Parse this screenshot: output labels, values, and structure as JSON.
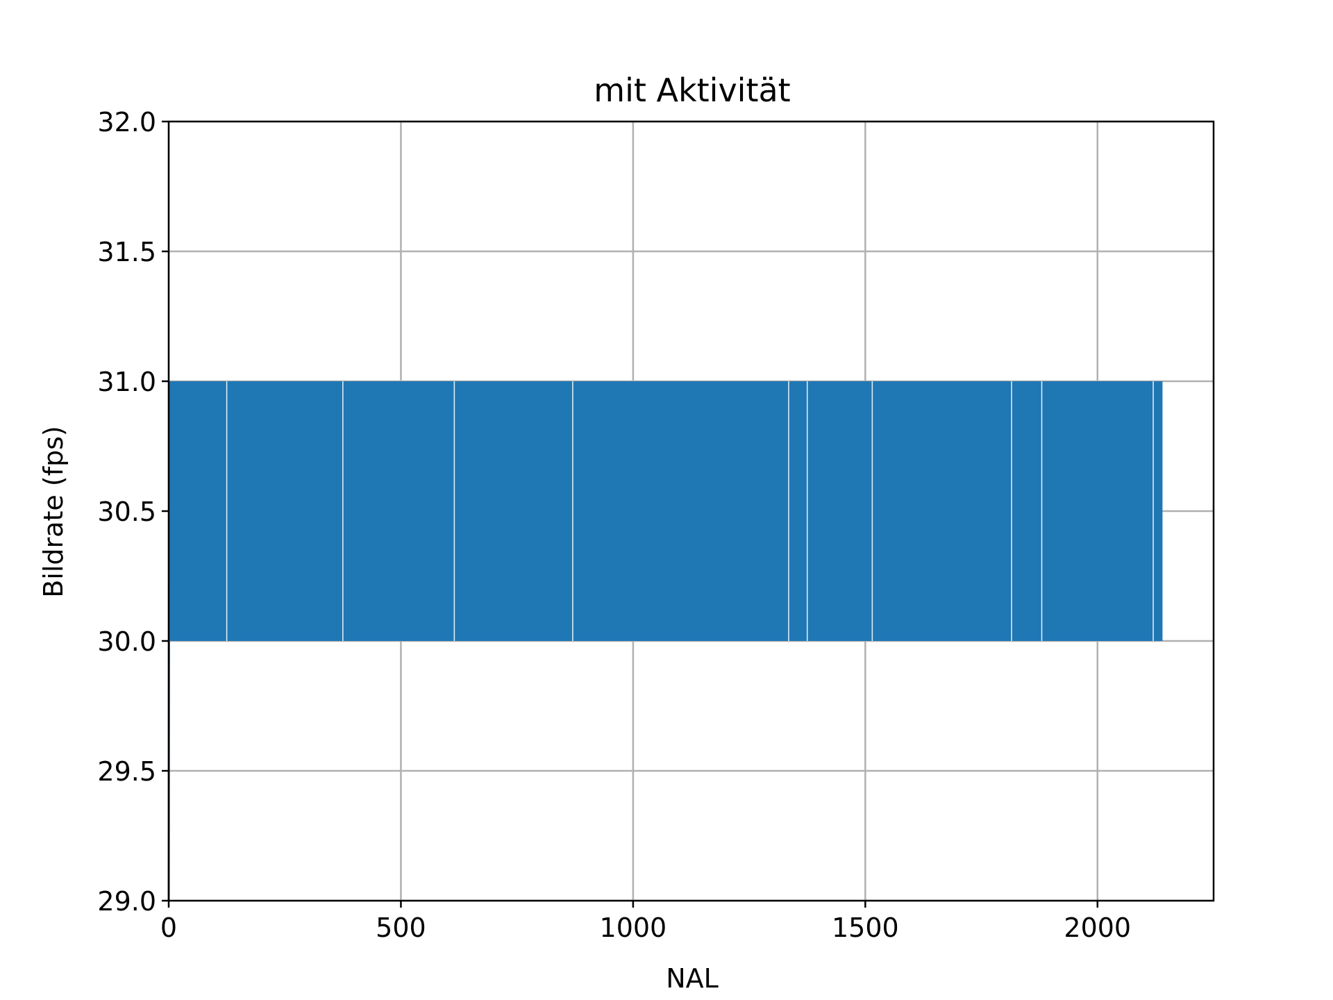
{
  "chart_data": {
    "type": "line",
    "title": "mit Aktivität",
    "xlabel": "NAL",
    "ylabel": "Bildrate (fps)",
    "xlim": [
      0,
      2250
    ],
    "ylim": [
      29.0,
      32.0
    ],
    "xticks": [
      0,
      500,
      1000,
      1500,
      2000
    ],
    "xtick_labels": [
      "0",
      "500",
      "1000",
      "1500",
      "2000"
    ],
    "yticks": [
      29.0,
      29.5,
      30.0,
      30.5,
      31.0,
      31.5,
      32.0
    ],
    "ytick_labels": [
      "29.0",
      "29.5",
      "30.0",
      "30.5",
      "31.0",
      "31.5",
      "32.0"
    ],
    "grid": true,
    "series": [
      {
        "color": "#1f77b4",
        "description": "frame rate oscillating between 30 and 31 fps for each NAL unit",
        "x_range": [
          0,
          2140
        ],
        "start_value": 29.0,
        "values_alternate": [
          30.0,
          31.0
        ],
        "gaps_at_x": [
          125,
          375,
          615,
          870,
          1335,
          1375,
          1515,
          1815,
          1880,
          2120
        ]
      }
    ]
  }
}
